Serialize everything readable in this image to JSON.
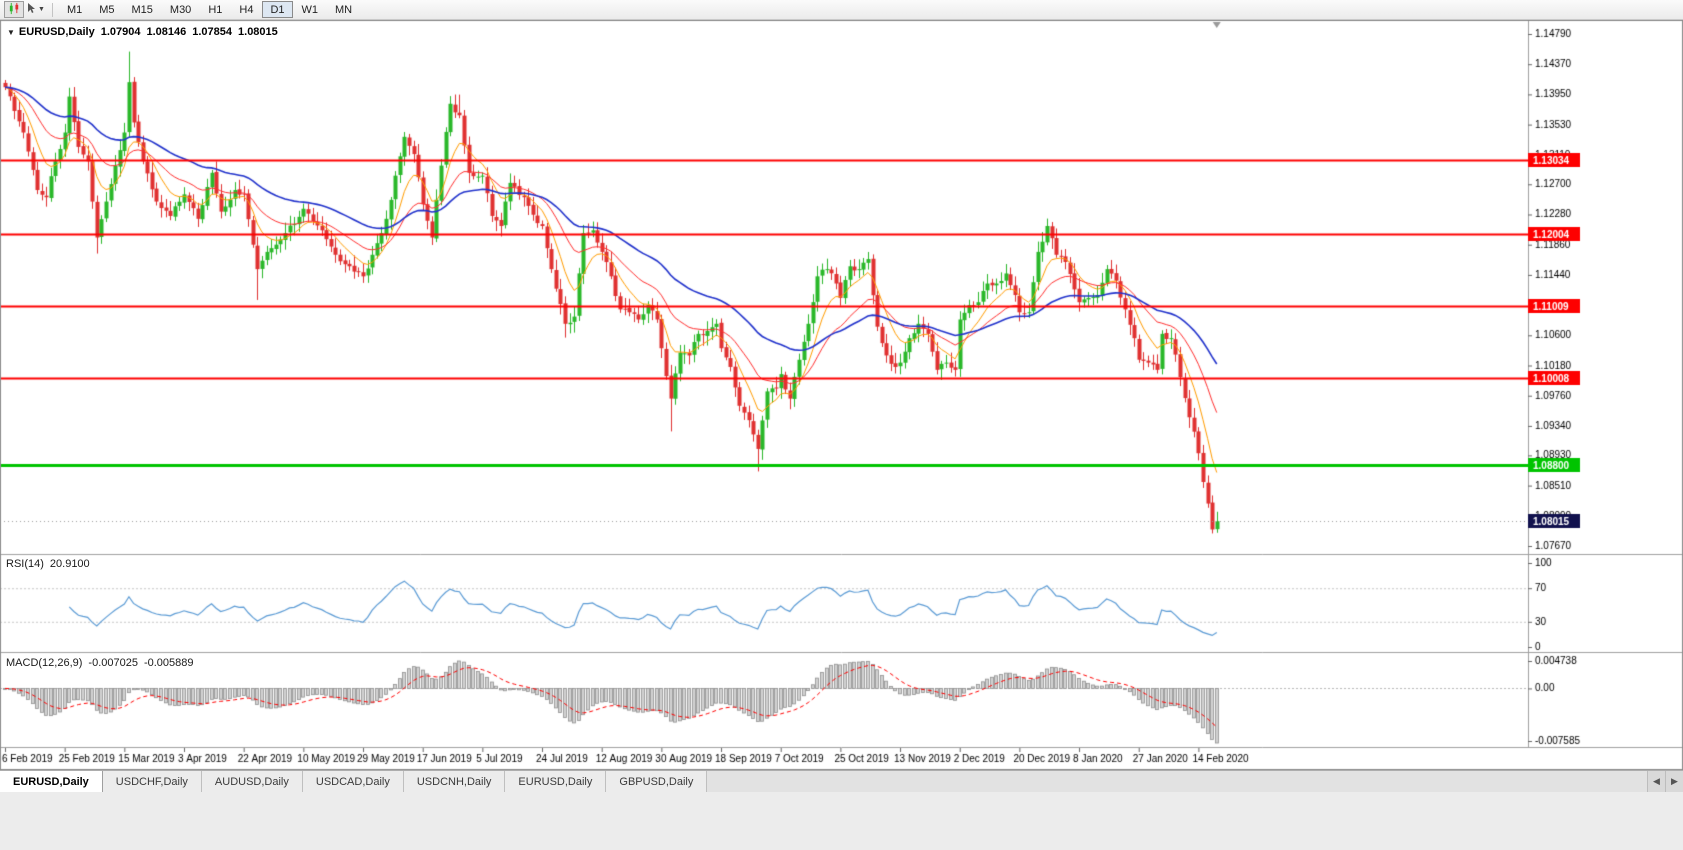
{
  "toolbar": {
    "timeframes": [
      "M1",
      "M5",
      "M15",
      "M30",
      "H1",
      "H4",
      "D1",
      "W1",
      "MN"
    ],
    "active_timeframe": "D1"
  },
  "title": {
    "symbol": "EURUSD,Daily",
    "open": "1.07904",
    "high": "1.08146",
    "low": "1.07854",
    "close": "1.08015"
  },
  "indicators": {
    "rsi": {
      "name": "RSI(14)",
      "value": "20.9100",
      "period": 14,
      "axis_ticks": [
        "100",
        "70",
        "30",
        "0"
      ],
      "levels": [
        70,
        30
      ],
      "color": "#5b9bd5",
      "level_color": "#c8c8c8"
    },
    "macd": {
      "name": "MACD(12,26,9)",
      "macd_value": "-0.007025",
      "signal_value": "-0.005889",
      "fast": 12,
      "slow": 26,
      "signal": 9,
      "axis_ticks": [
        "0.004738",
        "0.00",
        "-0.007585"
      ],
      "histogram_fill": "#d2d2d2",
      "histogram_stroke": "#8f8f8f",
      "signal_color": "#ff0000"
    }
  },
  "chart_data": {
    "type": "candlestick",
    "symbol": "EURUSD",
    "timeframe": "Daily",
    "current_bar": {
      "open": 1.07904,
      "high": 1.08146,
      "low": 1.07854,
      "close": 1.08015
    },
    "y_range": {
      "top": 1.1479,
      "bottom": 1.0767
    },
    "y_ticks": [
      "1.14790",
      "1.14370",
      "1.13950",
      "1.13530",
      "1.13110",
      "1.12700",
      "1.12280",
      "1.11860",
      "1.11440",
      "1.11020",
      "1.10600",
      "1.10180",
      "1.09760",
      "1.09340",
      "1.08930",
      "1.08510",
      "1.08090",
      "1.07670"
    ],
    "x_tick_labels": [
      "6 Feb 2019",
      "25 Feb 2019",
      "15 Mar 2019",
      "3 Apr 2019",
      "22 Apr 2019",
      "10 May 2019",
      "29 May 2019",
      "17 Jun 2019",
      "5 Jul 2019",
      "24 Jul 2019",
      "12 Aug 2019",
      "30 Aug 2019",
      "18 Sep 2019",
      "7 Oct 2019",
      "25 Oct 2019",
      "13 Nov 2019",
      "2 Dec 2019",
      "20 Dec 2019",
      "8 Jan 2020",
      "27 Jan 2020",
      "14 Feb 2020"
    ],
    "bars_per_label": 13,
    "total_bars": 265,
    "candle_up_color": "#2ab82a",
    "candle_down_color": "#e03131",
    "moving_averages": [
      {
        "type": "ema",
        "period": 8,
        "color": "#ff9c00",
        "width": 1
      },
      {
        "type": "ema",
        "period": 20,
        "color": "#ff2e2e",
        "width": 1
      },
      {
        "type": "ema",
        "period": 45,
        "color": "#2233cc",
        "width": 1.6
      }
    ],
    "hlines": [
      {
        "price": 1.13034,
        "label": "1.13034",
        "color": "#fe0000",
        "width": 2
      },
      {
        "price": 1.12004,
        "label": "1.12004",
        "color": "#fe0000",
        "width": 2
      },
      {
        "price": 1.11009,
        "label": "1.11009",
        "color": "#fe0000",
        "width": 2
      },
      {
        "price": 1.10008,
        "label": "1.10008",
        "color": "#fe0000",
        "width": 2
      },
      {
        "price": 1.088,
        "label": "1.08800",
        "color": "#00c400",
        "width": 3
      }
    ],
    "current_price": {
      "value": 1.08015,
      "label": "1.08015",
      "badge_color": "#11114d"
    },
    "price_waypoints": [
      [
        0,
        1.1405
      ],
      [
        2,
        1.1372
      ],
      [
        4,
        1.1342
      ],
      [
        6,
        1.129
      ],
      [
        7,
        1.1262
      ],
      [
        9,
        1.1252
      ],
      [
        11,
        1.1302
      ],
      [
        13,
        1.1342
      ],
      [
        14,
        1.1392
      ],
      [
        16,
        1.1322
      ],
      [
        18,
        1.1302
      ],
      [
        19,
        1.1246
      ],
      [
        20,
        1.1196
      ],
      [
        22,
        1.1246
      ],
      [
        24,
        1.1296
      ],
      [
        26,
        1.1342
      ],
      [
        27,
        1.1412
      ],
      [
        28,
        1.1356
      ],
      [
        30,
        1.1302
      ],
      [
        33,
        1.1246
      ],
      [
        36,
        1.1226
      ],
      [
        39,
        1.1256
      ],
      [
        42,
        1.1222
      ],
      [
        45,
        1.1286
      ],
      [
        47,
        1.1232
      ],
      [
        50,
        1.1262
      ],
      [
        52,
        1.1256
      ],
      [
        54,
        1.1186
      ],
      [
        55,
        1.1152
      ],
      [
        57,
        1.1176
      ],
      [
        61,
        1.1202
      ],
      [
        65,
        1.1236
      ],
      [
        69,
        1.1206
      ],
      [
        72,
        1.1172
      ],
      [
        75,
        1.1156
      ],
      [
        78,
        1.1142
      ],
      [
        80,
        1.1172
      ],
      [
        83,
        1.1222
      ],
      [
        85,
        1.1282
      ],
      [
        87,
        1.1336
      ],
      [
        89,
        1.1312
      ],
      [
        91,
        1.1242
      ],
      [
        93,
        1.1196
      ],
      [
        95,
        1.1296
      ],
      [
        97,
        1.1382
      ],
      [
        99,
        1.1366
      ],
      [
        101,
        1.1286
      ],
      [
        104,
        1.1282
      ],
      [
        106,
        1.1226
      ],
      [
        108,
        1.1212
      ],
      [
        110,
        1.1272
      ],
      [
        113,
        1.1252
      ],
      [
        116,
        1.1216
      ],
      [
        117,
        1.1212
      ],
      [
        119,
        1.1152
      ],
      [
        122,
        1.1076
      ],
      [
        124,
        1.1086
      ],
      [
        126,
        1.1202
      ],
      [
        128,
        1.1206
      ],
      [
        130,
        1.1176
      ],
      [
        132,
        1.1142
      ],
      [
        134,
        1.1096
      ],
      [
        136,
        1.1092
      ],
      [
        138,
        1.1082
      ],
      [
        140,
        1.1102
      ],
      [
        142,
        1.1082
      ],
      [
        143,
        1.1042
      ],
      [
        145,
        1.0972
      ],
      [
        147,
        1.1036
      ],
      [
        149,
        1.1032
      ],
      [
        151,
        1.1062
      ],
      [
        153,
        1.1066
      ],
      [
        155,
        1.1076
      ],
      [
        156,
        1.1042
      ],
      [
        158,
        1.1016
      ],
      [
        160,
        1.0962
      ],
      [
        162,
        1.0942
      ],
      [
        164,
        1.0902
      ],
      [
        166,
        1.0982
      ],
      [
        168,
        1.0986
      ],
      [
        169,
        1.1006
      ],
      [
        171,
        1.0972
      ],
      [
        173,
        1.1026
      ],
      [
        175,
        1.1076
      ],
      [
        177,
        1.1142
      ],
      [
        179,
        1.1152
      ],
      [
        181,
        1.1132
      ],
      [
        182,
        1.1112
      ],
      [
        184,
        1.1156
      ],
      [
        186,
        1.1152
      ],
      [
        188,
        1.1166
      ],
      [
        190,
        1.1072
      ],
      [
        192,
        1.1032
      ],
      [
        194,
        1.1016
      ],
      [
        195,
        1.1022
      ],
      [
        197,
        1.1056
      ],
      [
        199,
        1.1076
      ],
      [
        201,
        1.1062
      ],
      [
        203,
        1.1012
      ],
      [
        205,
        1.1022
      ],
      [
        207,
        1.1012
      ],
      [
        208,
        1.1082
      ],
      [
        210,
        1.1102
      ],
      [
        212,
        1.1106
      ],
      [
        214,
        1.1132
      ],
      [
        216,
        1.1132
      ],
      [
        218,
        1.1146
      ],
      [
        220,
        1.1116
      ],
      [
        221,
        1.1092
      ],
      [
        223,
        1.1092
      ],
      [
        225,
        1.1176
      ],
      [
        227,
        1.1212
      ],
      [
        229,
        1.1172
      ],
      [
        231,
        1.1162
      ],
      [
        234,
        1.1106
      ],
      [
        236,
        1.1112
      ],
      [
        238,
        1.1116
      ],
      [
        240,
        1.1152
      ],
      [
        242,
        1.1136
      ],
      [
        244,
        1.1096
      ],
      [
        246,
        1.1056
      ],
      [
        247,
        1.1026
      ],
      [
        249,
        1.1022
      ],
      [
        251,
        1.1012
      ],
      [
        252,
        1.1062
      ],
      [
        254,
        1.1056
      ],
      [
        256,
        1.1002
      ],
      [
        258,
        1.0946
      ],
      [
        259,
        1.0926
      ],
      [
        260,
        1.0896
      ],
      [
        261,
        1.0856
      ],
      [
        262,
        1.0826
      ],
      [
        263,
        1.079
      ],
      [
        264,
        1.0802
      ]
    ],
    "wick_spikes": [
      {
        "index": 20,
        "side": "low",
        "extra": 0.0015
      },
      {
        "index": 27,
        "side": "high",
        "extra": 0.003
      },
      {
        "index": 55,
        "side": "low",
        "extra": 0.003
      },
      {
        "index": 99,
        "side": "high",
        "extra": 0.002
      },
      {
        "index": 122,
        "side": "low",
        "extra": 0.0015
      },
      {
        "index": 145,
        "side": "low",
        "extra": 0.0038
      },
      {
        "index": 164,
        "side": "low",
        "extra": 0.002
      }
    ]
  },
  "tabs": {
    "items": [
      "EURUSD,Daily",
      "USDCHF,Daily",
      "AUDUSD,Daily",
      "USDCAD,Daily",
      "USDCNH,Daily",
      "EURUSD,Daily",
      "GBPUSD,Daily"
    ],
    "active_index": 0
  }
}
